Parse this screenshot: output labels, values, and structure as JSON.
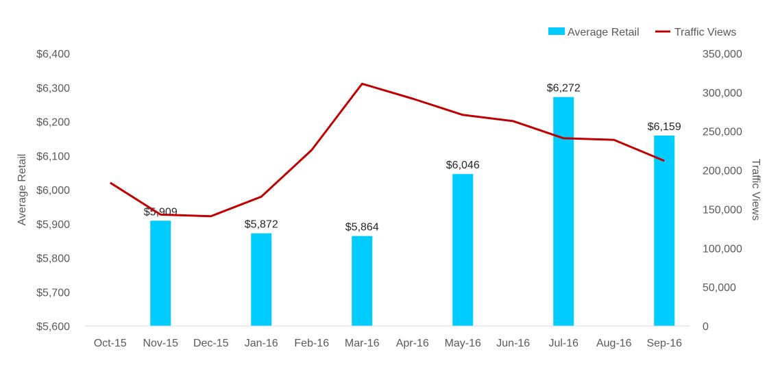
{
  "chart_data": {
    "type": "bar+line",
    "categories": [
      "Oct-15",
      "Nov-15",
      "Dec-15",
      "Jan-16",
      "Feb-16",
      "Mar-16",
      "Apr-16",
      "May-16",
      "Jun-16",
      "Jul-16",
      "Aug-16",
      "Sep-16"
    ],
    "series": [
      {
        "name": "Average Retail",
        "type": "bar",
        "axis": "left",
        "color": "#00CCFF",
        "values": [
          null,
          5909,
          null,
          5872,
          null,
          5864,
          null,
          6046,
          null,
          6272,
          null,
          6159
        ],
        "labels": [
          null,
          "$5,909",
          null,
          "$5,872",
          null,
          "$5,864",
          null,
          "$6,046",
          null,
          "$6,272",
          null,
          "$6,159"
        ]
      },
      {
        "name": "Traffic Views",
        "type": "line",
        "axis": "right",
        "color": "#C00000",
        "values": [
          184000,
          143000,
          141000,
          166000,
          226000,
          311000,
          292000,
          271000,
          263000,
          241000,
          239000,
          212000
        ]
      }
    ],
    "y_left": {
      "label": "Average Retail",
      "min": 5600,
      "max": 6400,
      "ticks": [
        5600,
        5700,
        5800,
        5900,
        6000,
        6100,
        6200,
        6300,
        6400
      ],
      "tick_labels": [
        "$5,600",
        "$5,700",
        "$5,800",
        "$5,900",
        "$6,000",
        "$6,100",
        "$6,200",
        "$6,300",
        "$6,400"
      ]
    },
    "y_right": {
      "label": "Traffic Views",
      "min": 0,
      "max": 350000,
      "ticks": [
        0,
        50000,
        100000,
        150000,
        200000,
        250000,
        300000,
        350000
      ],
      "tick_labels": [
        "0",
        "50,000",
        "100,000",
        "150,000",
        "200,000",
        "250,000",
        "300,000",
        "350,000"
      ]
    },
    "grid": false,
    "legend_position": "top-right",
    "axis_color": "#D9D9D9",
    "text_color": "#595959",
    "label_color": "#262626"
  }
}
